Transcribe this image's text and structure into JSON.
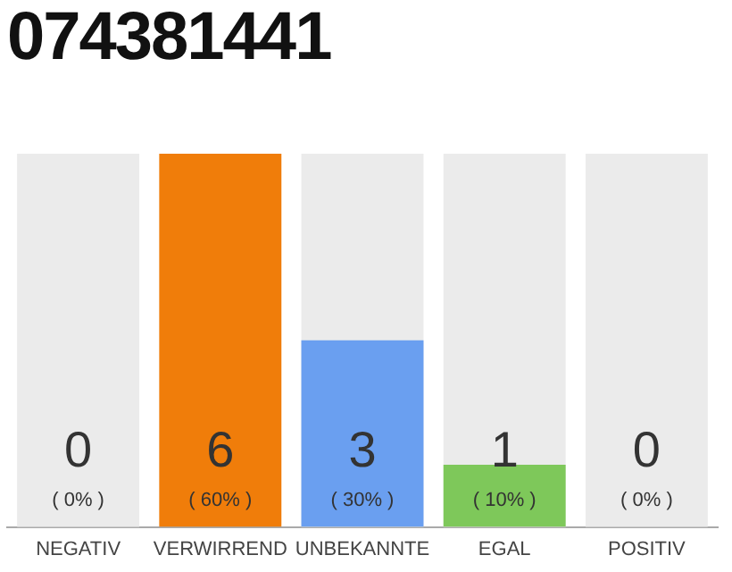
{
  "chart_data": {
    "type": "bar",
    "title": "074381441",
    "categories": [
      "NEGATIV",
      "VERWIRREND",
      "UNBEKANNTE",
      "EGAL",
      "POSITIV"
    ],
    "values": [
      0,
      6,
      3,
      1,
      0
    ],
    "value_labels": [
      "0",
      "6",
      "3",
      "1",
      "0"
    ],
    "colors": [
      "#f07d0a",
      "#f07d0a",
      "#6a9ff0",
      "#7ec85a",
      "#f07d0a"
    ],
    "bands": [
      {
        "axis": "x",
        "from": "NEGATIV",
        "to": "NEGATIV",
        "color": "#ebebeb"
      },
      {
        "axis": "x",
        "from": "UNBEKANNTE",
        "to": "UNBEKANNTE",
        "color": "#ebebeb"
      },
      {
        "axis": "x",
        "from": "EGAL",
        "to": "EGAL",
        "color": "#ebebeb"
      },
      {
        "axis": "x",
        "from": "POSITIV",
        "to": "POSITIV",
        "color": "#ebebeb"
      }
    ],
    "tick_labels": "x",
    "grid": false,
    "legend": false,
    "annotations": [
      "( 0% )",
      "( 60% )",
      "( 30% )",
      "( 10% )",
      "( 0% )"
    ]
  }
}
